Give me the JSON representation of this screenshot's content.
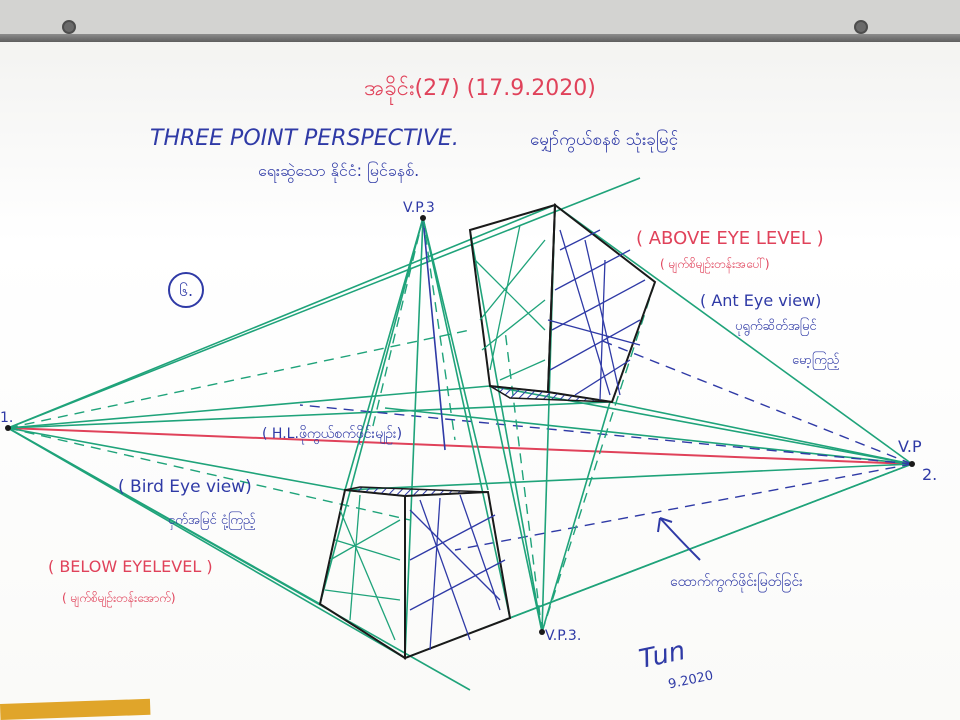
{
  "photo": {
    "subject": "",
    "colors": {
      "board": "#ffffff",
      "red_marker": "#e0425a",
      "blue_marker": "#2f3aa6",
      "green_marker": "#1fa37a",
      "black_marker": "#1a1a1a",
      "frame": "#5e5e5e",
      "ruler": "#e0a52a"
    }
  },
  "board": {
    "header": "အခိုင်း(27) (17.9.2020)",
    "title_en": "THREE POINT PERSPECTIVE.",
    "title_my": "မျှော်ကွယ်စနစ် သုံးခုမြင့်",
    "subtitle_my": "ရေးဆွဲသော နိုင်ငံ: မြင်ခနစ်.",
    "item_number": "၆.",
    "vp3_top": "V.P.3",
    "vp1_label": "1.",
    "vp2_label": "V.P",
    "vp2_number": "2.",
    "vp3_bottom": "V.P.3.",
    "horizon_label": "( H.L.ဖိုကွယ်စက်ဖိုင်းမျဉ်း)",
    "above_eye_level": "( ABOVE EYE LEVEL )",
    "above_eye_level_my": "( မျက်စိမျဉ်းတန်းအပေါ်)",
    "ant_eye_view": "( Ant Eye view)",
    "ant_eye_view_my1": "ပုရွက်ဆိတ်အမြင်",
    "ant_eye_view_my2": "မော့ကြည့်",
    "bird_eye_view": "( Bird Eye view)",
    "bird_eye_view_my": "ငှက်အမြင် ငုံ့ကြည့်",
    "below_eye_level": "( BELOW EYELEVEL )",
    "below_eye_level_my": "( မျက်စိမျဉ်းတန်းအောက်)",
    "vanish_line_my": "ထောက်ကွက်ဖိုင်းမြတ်ခြင်း",
    "signature": "Tun",
    "signature_date": "9.2020"
  }
}
